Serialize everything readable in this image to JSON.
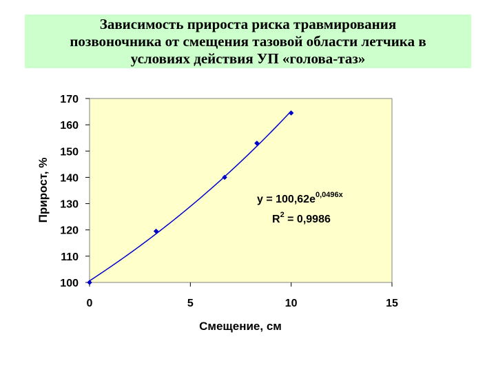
{
  "title_lines": [
    "Зависимость прироста риска травмирования",
    "позвоночника от смещения тазовой области летчика в",
    "условиях действия УП «голова-таз»"
  ],
  "colors": {
    "title_background": "#ccffcc",
    "plot_background": "#ffffcc",
    "series": "#0000cc"
  },
  "chart_data": {
    "type": "scatter",
    "xlabel": "Смещение, см",
    "ylabel": "Прирост, %",
    "xlim": [
      0,
      15
    ],
    "ylim": [
      100,
      170
    ],
    "x_ticks": [
      "0",
      "5",
      "10",
      "15"
    ],
    "y_ticks": [
      "100",
      "110",
      "120",
      "130",
      "140",
      "150",
      "160",
      "170"
    ],
    "grid": false,
    "series": [
      {
        "points": [
          {
            "x": 0,
            "y": 100
          },
          {
            "x": 3.3,
            "y": 119.5
          },
          {
            "x": 6.7,
            "y": 140
          },
          {
            "x": 8.3,
            "y": 153
          },
          {
            "x": 10,
            "y": 164.5
          }
        ]
      }
    ],
    "trendline": {
      "type": "exponential",
      "a": 100.62,
      "b": 0.0496,
      "x_range": [
        0,
        10
      ],
      "equation_text": "y = 100,62e",
      "exponent_text": "0,0496x",
      "r2_prefix": "R",
      "r2_exp": "2",
      "r2_value": " = 0,9986"
    }
  }
}
